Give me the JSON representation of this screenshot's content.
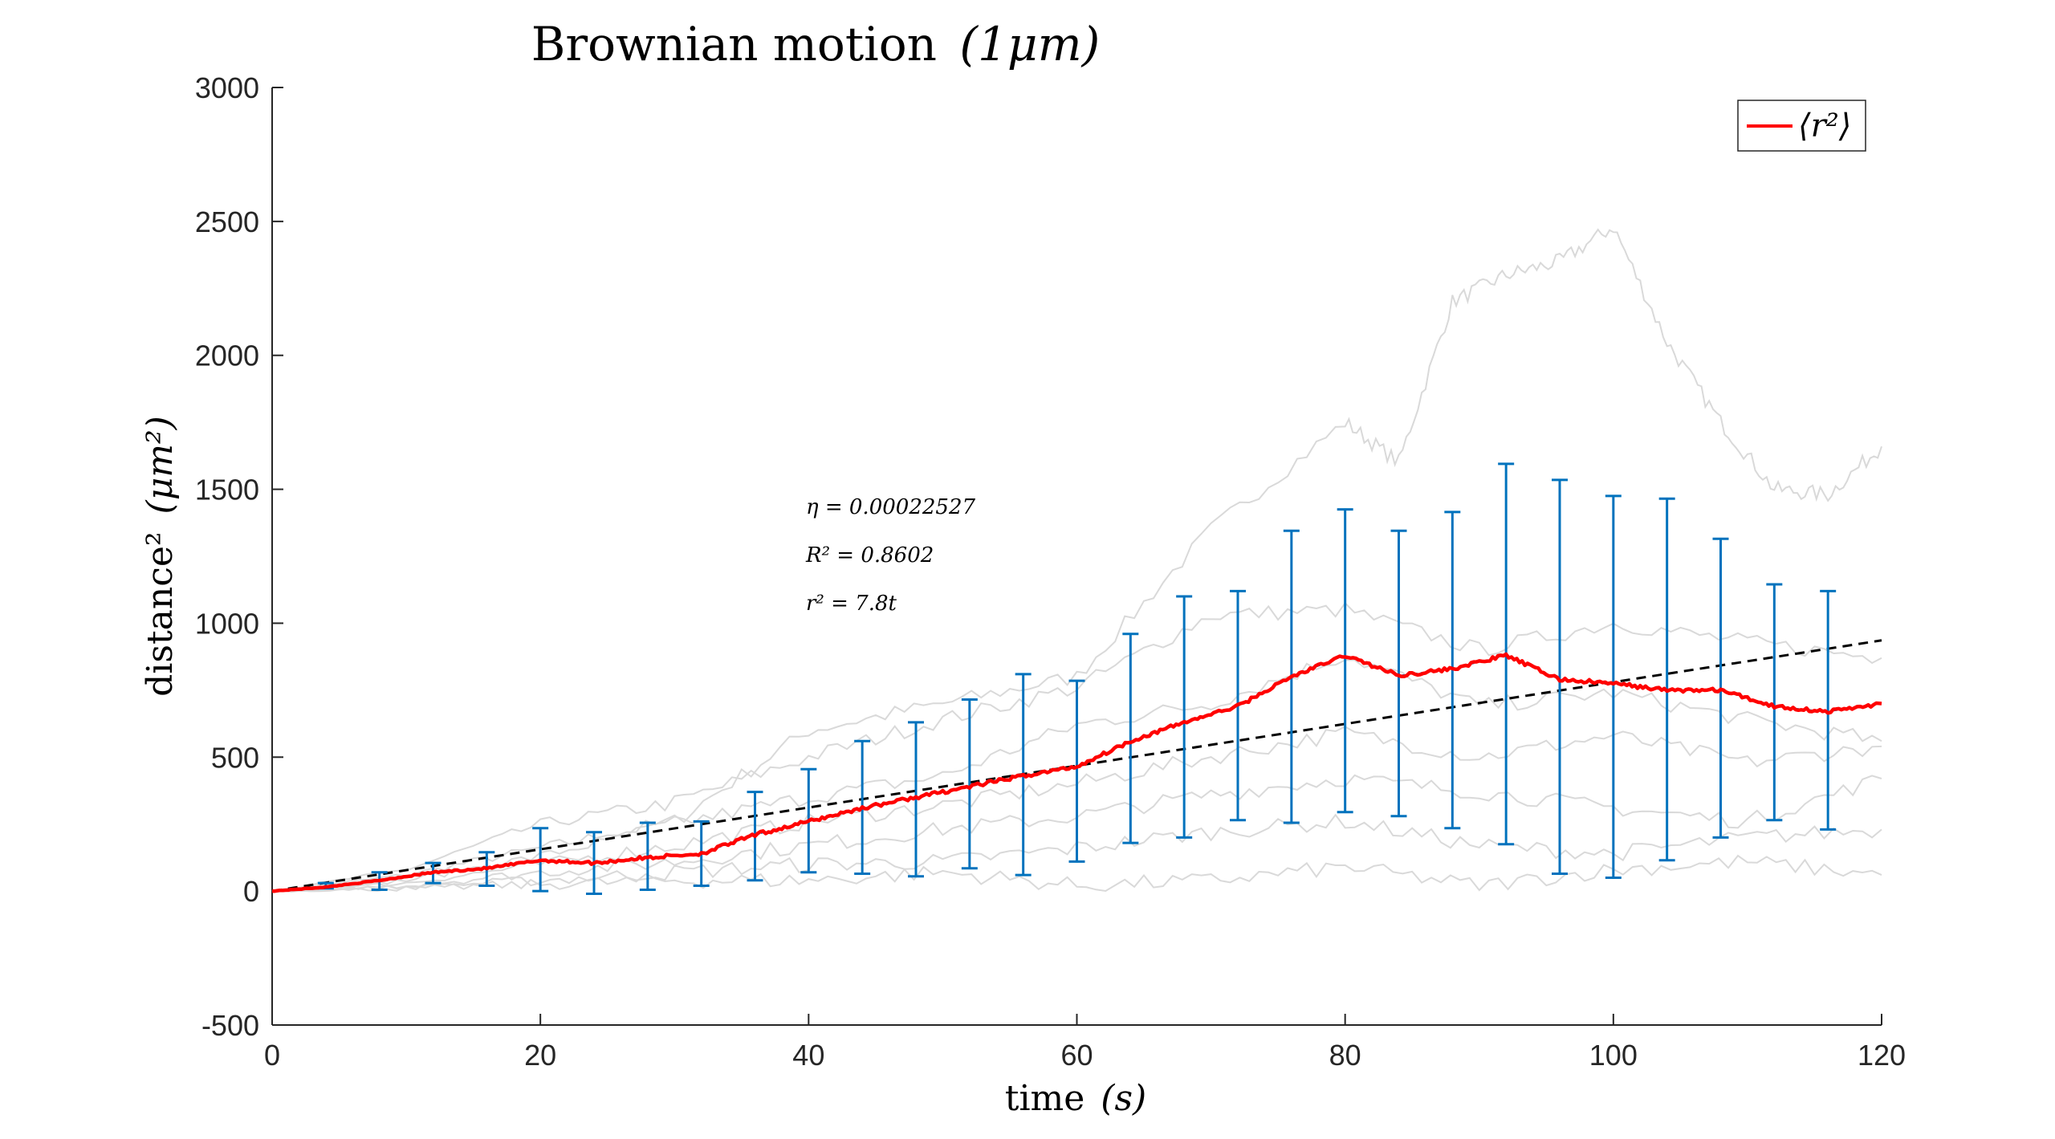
{
  "chart_data": {
    "type": "line",
    "title": "Brownian motion",
    "title_math": "(1μm)",
    "xlabel": "time",
    "xlabel_math": "(s)",
    "ylabel": "distance²",
    "ylabel_math": "(μm²)",
    "xlim": [
      0,
      120
    ],
    "ylim": [
      -500,
      3000
    ],
    "xticks": [
      0,
      20,
      40,
      60,
      80,
      100,
      120
    ],
    "yticks": [
      -500,
      0,
      500,
      1000,
      1500,
      2000,
      2500,
      3000
    ],
    "xtick_labels": [
      "0",
      "20",
      "40",
      "60",
      "80",
      "100",
      "120"
    ],
    "ytick_labels": [
      "-500",
      "0",
      "500",
      "1000",
      "1500",
      "2000",
      "2500",
      "3000"
    ],
    "grid": false,
    "legend": {
      "position": "top-right",
      "entries": [
        "⟨r²⟩"
      ]
    },
    "annotations": [
      "η = 0.00022527",
      "R² = 0.8602",
      "r² = 7.8t"
    ],
    "colors": {
      "mean": "#ff0000",
      "fit": "#000000",
      "errorbar": "#0072bd",
      "trajectories": "#d9d9d9"
    },
    "series": [
      {
        "name": "⟨r²⟩",
        "x": [
          0,
          4,
          8,
          12,
          16,
          20,
          24,
          28,
          32,
          36,
          40,
          44,
          48,
          52,
          56,
          60,
          64,
          68,
          72,
          76,
          80,
          84,
          88,
          92,
          96,
          100,
          104,
          108,
          112,
          116,
          120
        ],
        "y": [
          0,
          15,
          40,
          70,
          85,
          115,
          105,
          125,
          140,
          210,
          260,
          310,
          350,
          390,
          430,
          465,
          560,
          630,
          690,
          800,
          880,
          805,
          830,
          880,
          790,
          775,
          750,
          750,
          690,
          670,
          700
        ]
      }
    ],
    "fit_line": {
      "x": [
        0,
        120
      ],
      "y": [
        0,
        936
      ]
    },
    "error_bars": {
      "x": [
        4,
        8,
        12,
        16,
        20,
        24,
        28,
        32,
        36,
        40,
        44,
        48,
        52,
        56,
        60,
        64,
        68,
        72,
        76,
        80,
        84,
        88,
        92,
        96,
        100,
        104,
        108,
        112,
        116
      ],
      "low": [
        10,
        5,
        30,
        20,
        0,
        -10,
        5,
        20,
        40,
        70,
        65,
        55,
        85,
        60,
        110,
        180,
        200,
        265,
        255,
        295,
        280,
        235,
        175,
        65,
        50,
        115,
        200,
        265,
        230
      ],
      "high": [
        30,
        70,
        105,
        145,
        235,
        220,
        255,
        260,
        370,
        455,
        560,
        630,
        715,
        810,
        785,
        960,
        1100,
        1120,
        1345,
        1425,
        1345,
        1415,
        1595,
        1535,
        1475,
        1465,
        1315,
        1145,
        1120
      ]
    },
    "trajectories": [
      {
        "x": [
          0,
          10,
          20,
          30,
          40,
          50,
          60,
          70,
          80,
          84,
          88,
          92,
          96,
          100,
          104,
          108,
          112,
          116,
          120
        ],
        "y": [
          0,
          60,
          160,
          260,
          600,
          700,
          800,
          1350,
          1750,
          1600,
          2200,
          2300,
          2350,
          2480,
          2050,
          1750,
          1500,
          1480,
          1660
        ]
      },
      {
        "x": [
          0,
          10,
          20,
          30,
          40,
          50,
          60,
          70,
          80,
          90,
          100,
          110,
          120
        ],
        "y": [
          0,
          80,
          250,
          330,
          500,
          640,
          760,
          1030,
          1050,
          900,
          1000,
          930,
          870
        ]
      },
      {
        "x": [
          0,
          10,
          20,
          30,
          40,
          50,
          60,
          70,
          80,
          90,
          100,
          110,
          120
        ],
        "y": [
          0,
          40,
          130,
          250,
          350,
          430,
          620,
          700,
          880,
          690,
          740,
          640,
          560
        ]
      },
      {
        "x": [
          0,
          10,
          20,
          30,
          40,
          50,
          60,
          70,
          80,
          90,
          100,
          110,
          120
        ],
        "y": [
          0,
          30,
          100,
          170,
          260,
          320,
          400,
          500,
          590,
          500,
          580,
          480,
          540
        ]
      },
      {
        "x": [
          0,
          10,
          20,
          30,
          40,
          50,
          60,
          70,
          80,
          90,
          100,
          110,
          120
        ],
        "y": [
          0,
          20,
          70,
          110,
          170,
          230,
          280,
          360,
          420,
          370,
          310,
          260,
          420
        ]
      },
      {
        "x": [
          0,
          10,
          20,
          30,
          40,
          50,
          60,
          70,
          80,
          90,
          100,
          110,
          120
        ],
        "y": [
          0,
          15,
          40,
          70,
          100,
          110,
          160,
          220,
          260,
          170,
          140,
          200,
          230
        ]
      },
      {
        "x": [
          0,
          10,
          20,
          30,
          40,
          50,
          60,
          70,
          80,
          90,
          100,
          110,
          120
        ],
        "y": [
          0,
          10,
          25,
          40,
          40,
          70,
          20,
          40,
          90,
          20,
          80,
          110,
          60
        ]
      }
    ]
  }
}
